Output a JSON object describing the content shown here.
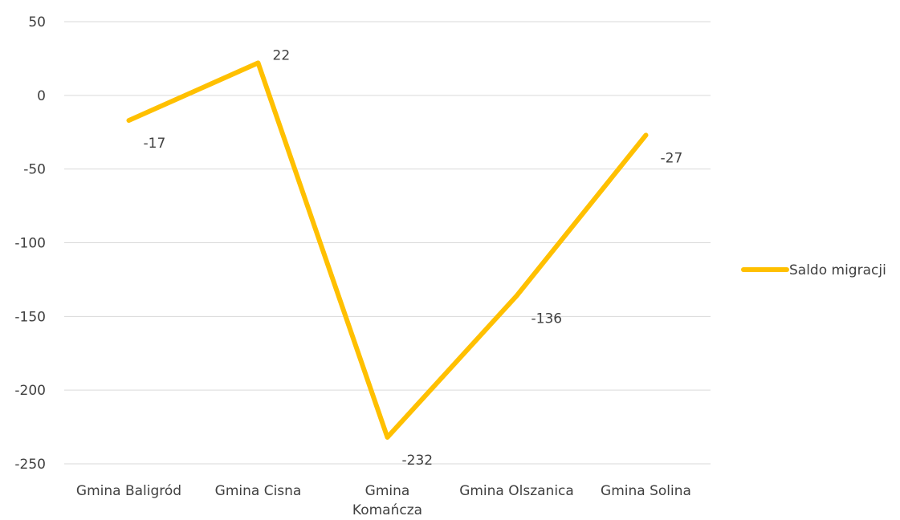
{
  "chart_data": {
    "type": "line",
    "categories": [
      [
        "Gmina Baligród"
      ],
      [
        "Gmina Cisna"
      ],
      [
        "Gmina",
        "Komańcza"
      ],
      [
        "Gmina Olszanica"
      ],
      [
        "Gmina Solina"
      ]
    ],
    "series": [
      {
        "name": "Saldo migracji",
        "color": "#FFC000",
        "values": [
          -17,
          22,
          -232,
          -136,
          -27
        ]
      }
    ],
    "ylim": [
      -250,
      50
    ],
    "yticks": [
      50,
      0,
      -50,
      -100,
      -150,
      -200,
      -250
    ],
    "grid": true,
    "legend": "right",
    "data_labels": true
  }
}
